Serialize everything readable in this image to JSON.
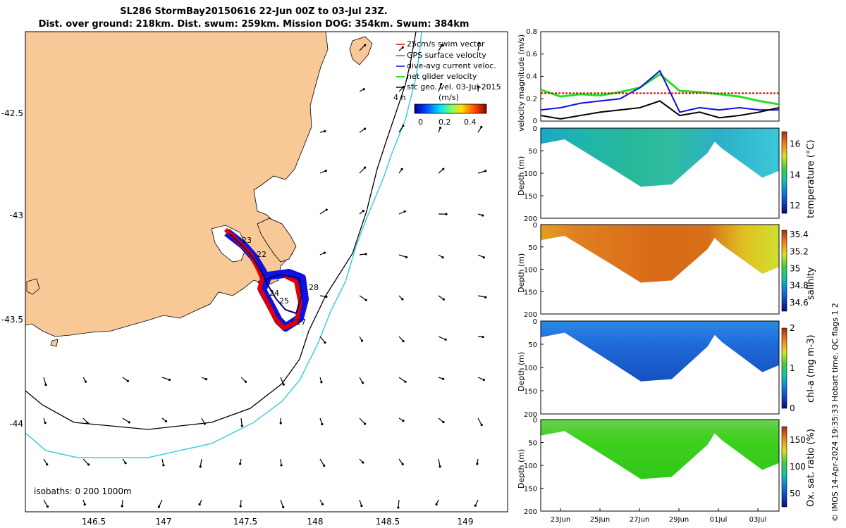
{
  "title_line1": "SL286 StormBay20150616 22-Jun 00Z to 03-Jul 23Z.",
  "title_line2": "Dist. over ground: 218km. Dist. swum: 259km. Mission DOG: 354km. Swum: 384km",
  "copyright": "© IMOS 14-Apr-2024 19:35:33 Hobart time. QC flags 1  2",
  "colors": {
    "land": "#f9c897",
    "cyan_isobath": "#39d0dc",
    "red": "#e00000",
    "blue": "#1010e0",
    "green": "#22e022",
    "magenta": "#e010e0",
    "black": "#000000"
  },
  "map": {
    "x_ticks": [
      "146.5",
      "147",
      "147.5",
      "148",
      "148.5",
      "149"
    ],
    "y_ticks": [
      "-42.5",
      "-43",
      "-43.5",
      "-44"
    ],
    "legend": [
      {
        "label": "25cm/s swim vector",
        "color": "red"
      },
      {
        "label": "GPS surface velocity",
        "color": "magenta"
      },
      {
        "label": "dive-avg current veloc.",
        "color": "blue"
      },
      {
        "label": "net glider velocity",
        "color": "green"
      },
      {
        "label": "sfc geo. vel. 03-Jul-2015",
        "color": "black"
      }
    ],
    "colorbar_unit": "(m/s)",
    "colorbar_ticks": [
      "0",
      "0.2",
      "0.4"
    ],
    "hours_label": "4 h",
    "isobaths_label": "isobaths: 0   200  1000m",
    "track_labels": [
      "23",
      "22",
      "24",
      "25",
      "28",
      "27"
    ]
  },
  "chart_data": [
    {
      "type": "line",
      "ylabel": "velocity magnitude (m/s)",
      "ylim": [
        0,
        0.8
      ],
      "yticks": [
        "0",
        "0.2",
        "0.4",
        "0.6",
        "0.8"
      ],
      "x": [
        "22Jun",
        "23Jun",
        "24Jun",
        "25Jun",
        "26Jun",
        "27Jun",
        "28Jun",
        "29Jun",
        "30Jun",
        "01Jul",
        "02Jul",
        "03Jul",
        "04Jul"
      ],
      "series": [
        {
          "name": "net glider velocity",
          "color": "green",
          "values": [
            0.28,
            0.22,
            0.24,
            0.23,
            0.26,
            0.3,
            0.42,
            0.27,
            0.26,
            0.24,
            0.22,
            0.18,
            0.15
          ]
        },
        {
          "name": "dive-avg current veloc.",
          "color": "blue",
          "values": [
            0.1,
            0.12,
            0.16,
            0.18,
            0.2,
            0.3,
            0.45,
            0.08,
            0.12,
            0.1,
            0.12,
            0.1,
            0.1
          ]
        },
        {
          "name": "sfc geo. vel.",
          "color": "black",
          "values": [
            0.05,
            0.02,
            0.05,
            0.08,
            0.1,
            0.12,
            0.18,
            0.05,
            0.08,
            0.03,
            0.05,
            0.08,
            0.12
          ]
        },
        {
          "name": "25cm/s swim",
          "color": "red",
          "values": [
            0.25,
            0.25,
            0.25,
            0.25,
            0.25,
            0.25,
            0.25,
            0.25,
            0.25,
            0.25,
            0.25,
            0.25,
            0.25
          ]
        }
      ]
    },
    {
      "type": "heatmap",
      "ylabel": "Depth (m)",
      "yticks": [
        "0",
        "50",
        "100",
        "150",
        "200"
      ],
      "ylim": [
        200,
        0
      ],
      "colorbar_label": "temperature (°C)",
      "colorbar_ticks": [
        "12",
        "14",
        "16"
      ]
    },
    {
      "type": "heatmap",
      "ylabel": "Depth (m)",
      "yticks": [
        "0",
        "50",
        "100",
        "150",
        "200"
      ],
      "ylim": [
        200,
        0
      ],
      "colorbar_label": "salinity",
      "colorbar_ticks": [
        "34.6",
        "34.8",
        "35",
        "35.2",
        "35.4"
      ]
    },
    {
      "type": "heatmap",
      "ylabel": "Depth (m)",
      "yticks": [
        "0",
        "50",
        "100",
        "150",
        "200"
      ],
      "ylim": [
        200,
        0
      ],
      "colorbar_label": "chl-a (mg m-3)",
      "colorbar_ticks": [
        "0",
        "1",
        "2"
      ]
    },
    {
      "type": "heatmap",
      "ylabel": "Depth (m)",
      "yticks": [
        "0",
        "50",
        "100",
        "150",
        "200"
      ],
      "ylim": [
        200,
        0
      ],
      "colorbar_label": "Ox. sat. ratio (%)",
      "colorbar_ticks": [
        "50",
        "100",
        "150"
      ],
      "x_ticks": [
        "23Jun",
        "25Jun",
        "27Jun",
        "29Jun",
        "01Jul",
        "03Jul"
      ]
    }
  ]
}
